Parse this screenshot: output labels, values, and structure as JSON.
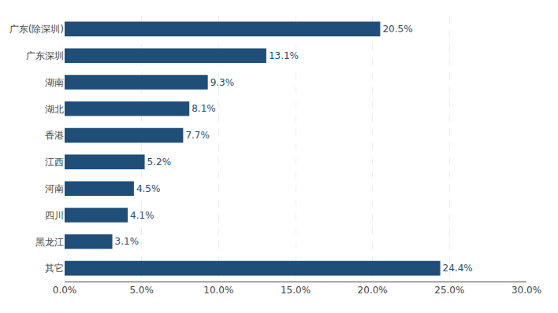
{
  "chart_data": {
    "type": "bar",
    "orientation": "horizontal",
    "categories": [
      "广东(除深圳)",
      "广东深圳",
      "湖南",
      "湖北",
      "香港",
      "江西",
      "河南",
      "四川",
      "黑龙江",
      "其它"
    ],
    "values": [
      20.5,
      13.1,
      9.3,
      8.1,
      7.7,
      5.2,
      4.5,
      4.1,
      3.1,
      24.4
    ],
    "value_labels": [
      "20.5%",
      "13.1%",
      "9.3%",
      "8.1%",
      "7.7%",
      "5.2%",
      "4.5%",
      "4.1%",
      "3.1%",
      "24.4%"
    ],
    "data_labels": true,
    "color": "#1F4E79",
    "xlim": [
      0,
      30
    ],
    "xticks": [
      {
        "value": 0,
        "label": "0.0%"
      },
      {
        "value": 5,
        "label": "5.0%"
      },
      {
        "value": 10,
        "label": "10.0%"
      },
      {
        "value": 15,
        "label": "15.0%"
      },
      {
        "value": 20,
        "label": "20.0%"
      },
      {
        "value": 25,
        "label": "25.0%"
      },
      {
        "value": 30,
        "label": "30.0%"
      }
    ],
    "grid": true
  }
}
